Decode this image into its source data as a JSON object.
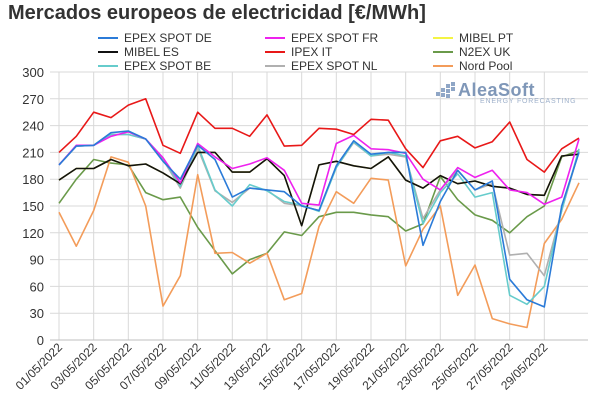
{
  "title": "Mercados europeos de electricidad [€/MWh]",
  "logo": {
    "name": "AleaSoft",
    "tagline": "ENERGY FORECASTING"
  },
  "chart_data": {
    "type": "line",
    "title": "Mercados europeos de electricidad [€/MWh]",
    "xlabel": "",
    "ylabel": "",
    "ylim": [
      0,
      300
    ],
    "yticks": [
      0,
      30,
      60,
      90,
      120,
      150,
      180,
      210,
      240,
      270,
      300
    ],
    "grid": true,
    "legend_position": "top",
    "x": [
      "01/05/2022",
      "02/05/2022",
      "03/05/2022",
      "04/05/2022",
      "05/05/2022",
      "06/05/2022",
      "07/05/2022",
      "08/05/2022",
      "09/05/2022",
      "10/05/2022",
      "11/05/2022",
      "12/05/2022",
      "13/05/2022",
      "14/05/2022",
      "15/05/2022",
      "16/05/2022",
      "17/05/2022",
      "18/05/2022",
      "19/05/2022",
      "20/05/2022",
      "21/05/2022",
      "22/05/2022",
      "23/05/2022",
      "24/05/2022",
      "25/05/2022",
      "26/05/2022",
      "27/05/2022",
      "28/05/2022",
      "29/05/2022",
      "30/05/2022",
      "31/05/2022"
    ],
    "xtick_labels": [
      "01/05/2022",
      "03/05/2022",
      "05/05/2022",
      "07/05/2022",
      "09/05/2022",
      "11/05/2022",
      "13/05/2022",
      "15/05/2022",
      "17/05/2022",
      "19/05/2022",
      "21/05/2022",
      "23/05/2022",
      "25/05/2022",
      "27/05/2022",
      "29/05/2022"
    ],
    "series": [
      {
        "name": "EPEX SPOT DE",
        "color": "#2b7bd8",
        "values": [
          196,
          217,
          218,
          232,
          234,
          225,
          200,
          180,
          218,
          202,
          160,
          170,
          168,
          166,
          150,
          145,
          195,
          223,
          208,
          210,
          210,
          106,
          155,
          190,
          168,
          178,
          68,
          45,
          37,
          150,
          210
        ]
      },
      {
        "name": "EPEX SPOT FR",
        "color": "#ee22ee",
        "values": [
          196,
          218,
          218,
          228,
          233,
          225,
          204,
          176,
          220,
          205,
          192,
          197,
          204,
          190,
          153,
          151,
          220,
          229,
          214,
          213,
          209,
          180,
          168,
          193,
          182,
          190,
          168,
          165,
          152,
          160,
          225
        ]
      },
      {
        "name": "MIBEL PT",
        "color": "#f4f444",
        "values": [
          179,
          192,
          192,
          202,
          195,
          197,
          187,
          175,
          210,
          210,
          188,
          188,
          203,
          184,
          128,
          196,
          200,
          195,
          192,
          205,
          179,
          170,
          184,
          175,
          178,
          172,
          170,
          163,
          162,
          206,
          208
        ]
      },
      {
        "name": "IPEX IT",
        "color": "#e81818",
        "values": [
          210,
          228,
          255,
          249,
          263,
          270,
          218,
          209,
          255,
          237,
          237,
          228,
          252,
          217,
          218,
          237,
          236,
          230,
          247,
          246,
          214,
          193,
          223,
          228,
          215,
          222,
          244,
          202,
          188,
          214,
          226
        ]
      },
      {
        "name": "MIBEL ES",
        "color": "#111111",
        "values": [
          179,
          192,
          192,
          202,
          195,
          197,
          187,
          175,
          210,
          210,
          188,
          188,
          203,
          184,
          128,
          196,
          200,
          195,
          192,
          205,
          179,
          170,
          184,
          175,
          178,
          172,
          170,
          163,
          162,
          206,
          208
        ]
      },
      {
        "name": "N2EX UK",
        "color": "#6a9a4a",
        "values": [
          153,
          180,
          202,
          198,
          196,
          165,
          157,
          160,
          126,
          100,
          74,
          90,
          97,
          121,
          117,
          138,
          143,
          143,
          140,
          138,
          122,
          130,
          183,
          157,
          140,
          134,
          120,
          138,
          150,
          205,
          212
        ]
      },
      {
        "name": "EPEX SPOT BE",
        "color": "#66cccc",
        "values": [
          196,
          217,
          218,
          230,
          230,
          225,
          204,
          172,
          218,
          168,
          150,
          174,
          167,
          155,
          151,
          144,
          193,
          222,
          206,
          210,
          206,
          130,
          165,
          186,
          160,
          165,
          50,
          40,
          60,
          145,
          214
        ]
      },
      {
        "name": "EPEX SPOT NL",
        "color": "#b0b0b0",
        "values": [
          196,
          217,
          218,
          230,
          230,
          225,
          202,
          170,
          215,
          167,
          154,
          170,
          168,
          153,
          150,
          145,
          193,
          221,
          206,
          208,
          205,
          136,
          168,
          190,
          168,
          175,
          95,
          97,
          72,
          145,
          212
        ]
      },
      {
        "name": "Nord Pool",
        "color": "#f39c5a",
        "values": [
          143,
          105,
          145,
          205,
          199,
          150,
          38,
          72,
          185,
          97,
          98,
          86,
          97,
          45,
          52,
          127,
          166,
          153,
          181,
          179,
          83,
          124,
          150,
          50,
          84,
          24,
          18,
          14,
          108,
          135,
          176
        ]
      }
    ]
  }
}
